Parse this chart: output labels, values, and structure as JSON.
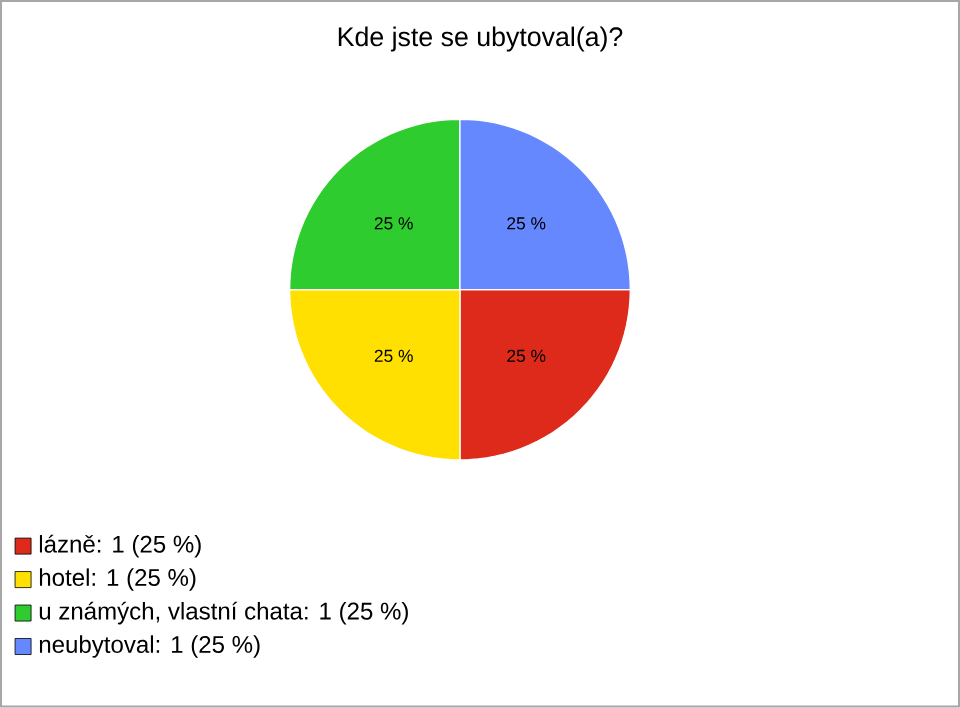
{
  "chart_data": {
    "type": "pie",
    "title": "Kde jste se ubytoval(a)?",
    "categories": [
      "lázně: 1 (25 %)",
      "hotel: 1 (25 %)",
      "u známých, vlastní chata: 1 (25 %)",
      "neubytoval: 1 (25 %)"
    ],
    "values": [
      25,
      25,
      25,
      25
    ],
    "value_labels": [
      "25 %",
      "25 %",
      "25 %",
      "25 %"
    ],
    "colors": [
      "#dd2a1a",
      "#ffe000",
      "#2fcc2f",
      "#6688ff"
    ],
    "legend": "bottom left"
  }
}
